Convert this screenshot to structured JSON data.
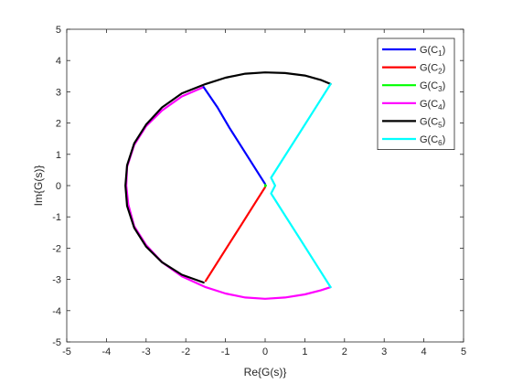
{
  "chart_data": {
    "type": "line",
    "title": "",
    "xlabel": "Re{G(s)}",
    "ylabel": "Im{G(s)}",
    "xlim": [
      -5,
      5
    ],
    "ylim": [
      -5,
      5
    ],
    "xticks": [
      -5,
      -4,
      -3,
      -2,
      -1,
      0,
      1,
      2,
      3,
      4,
      5
    ],
    "yticks": [
      -5,
      -4,
      -3,
      -2,
      -1,
      0,
      1,
      2,
      3,
      4,
      5
    ],
    "grid": false,
    "legend_position": "top-right",
    "series": [
      {
        "name": "G(C1)",
        "legend_base": "G(C",
        "legend_sub": "1",
        "legend_close": ")",
        "color": "#0000ff",
        "x": [
          0.0,
          -0.3,
          -0.6,
          -0.9,
          -1.2,
          -1.55
        ],
        "y": [
          0.05,
          0.65,
          1.25,
          1.85,
          2.5,
          3.15
        ]
      },
      {
        "name": "G(C2)",
        "legend_base": "G(C",
        "legend_sub": "2",
        "legend_close": ")",
        "color": "#ff0000",
        "x": [
          0.0,
          -0.3,
          -0.6,
          -0.9,
          -1.2,
          -1.5
        ],
        "y": [
          -0.05,
          -0.65,
          -1.25,
          -1.85,
          -2.45,
          -3.05
        ]
      },
      {
        "name": "G(C3)",
        "legend_base": "G(C",
        "legend_sub": "3",
        "legend_close": ")",
        "color": "#00ff00",
        "x": [
          0.0,
          0.02,
          0.0
        ],
        "y": [
          0.02,
          0.0,
          -0.02
        ]
      },
      {
        "name": "G(C4)",
        "legend_base": "G(C",
        "legend_sub": "4",
        "legend_close": ")",
        "color": "#ff00ff",
        "x": [
          -1.55,
          -2.1,
          -2.6,
          -3.0,
          -3.3,
          -3.48,
          -3.5,
          -3.45,
          -3.3,
          -3.0,
          -2.6,
          -2.1,
          -1.5,
          -1.0,
          -0.5,
          0.0,
          0.5,
          1.0,
          1.4,
          1.65
        ],
        "y": [
          3.15,
          2.85,
          2.4,
          1.9,
          1.3,
          0.6,
          0.0,
          -0.6,
          -1.3,
          -1.9,
          -2.45,
          -2.9,
          -3.25,
          -3.45,
          -3.58,
          -3.62,
          -3.58,
          -3.48,
          -3.35,
          -3.25
        ]
      },
      {
        "name": "G(C5)",
        "legend_base": "G(C",
        "legend_sub": "5",
        "legend_close": ")",
        "color": "#000000",
        "x": [
          1.65,
          1.4,
          1.0,
          0.5,
          0.0,
          -0.5,
          -1.0,
          -1.5,
          -2.1,
          -2.6,
          -3.0,
          -3.3,
          -3.48,
          -3.52,
          -3.48,
          -3.3,
          -3.0,
          -2.6,
          -2.1,
          -1.55
        ],
        "y": [
          3.25,
          3.38,
          3.52,
          3.6,
          3.62,
          3.58,
          3.45,
          3.25,
          2.95,
          2.5,
          1.95,
          1.35,
          0.65,
          0.0,
          -0.65,
          -1.35,
          -1.95,
          -2.45,
          -2.85,
          -3.1
        ]
      },
      {
        "name": "G(C6)",
        "legend_base": "G(C",
        "legend_sub": "6",
        "legend_close": ")",
        "color": "#00ffff",
        "x": [
          1.65,
          1.25,
          0.85,
          0.45,
          0.15,
          0.25,
          0.15,
          0.45,
          0.85,
          1.25,
          1.65
        ],
        "y": [
          3.25,
          2.45,
          1.65,
          0.85,
          0.25,
          0.0,
          -0.25,
          -0.85,
          -1.65,
          -2.45,
          -3.25
        ]
      }
    ]
  }
}
